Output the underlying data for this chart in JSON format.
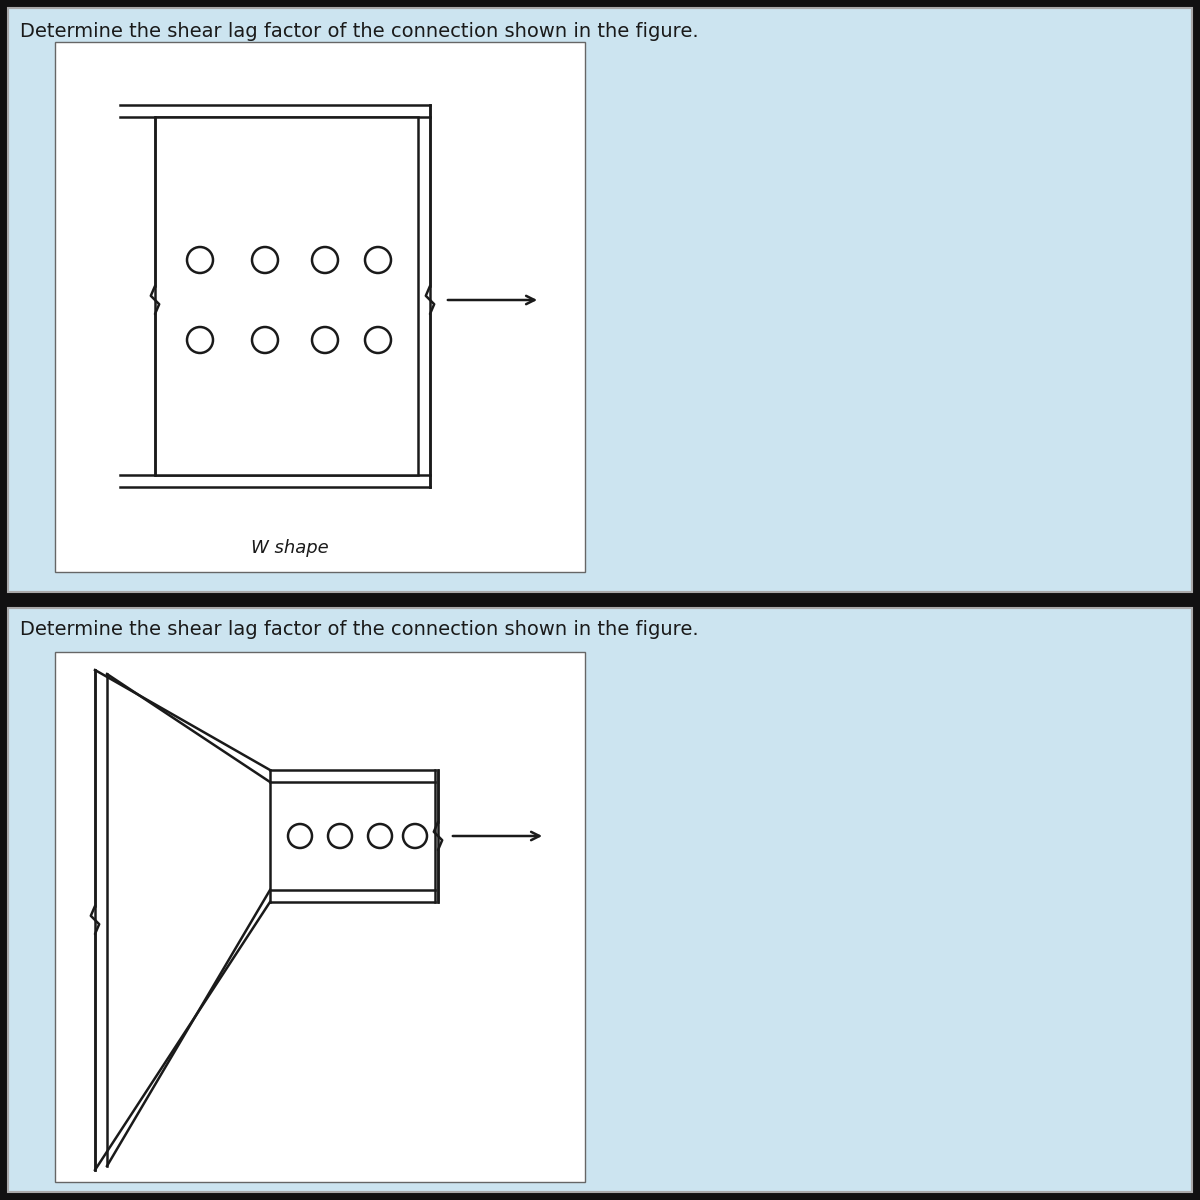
{
  "bg_color": "#cce4f0",
  "panel_bg": "#ffffff",
  "line_color": "#1a1a1a",
  "title1": "Determine the shear lag factor of the connection shown in the figure.",
  "title2": "Determine the shear lag factor of the connection shown in the figure.",
  "label1": "W shape",
  "title_fontsize": 14,
  "label_fontsize": 13,
  "sep_color": "#111111",
  "outer_border_color": "#888888"
}
